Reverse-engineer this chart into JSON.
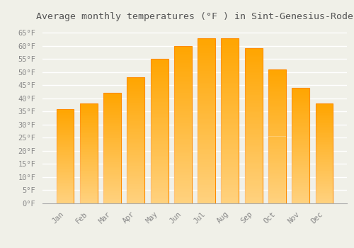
{
  "title": "Average monthly temperatures (°F ) in Sint-Genesius-Rode",
  "months": [
    "Jan",
    "Feb",
    "Mar",
    "Apr",
    "May",
    "Jun",
    "Jul",
    "Aug",
    "Sep",
    "Oct",
    "Nov",
    "Dec"
  ],
  "values": [
    36,
    38,
    42,
    48,
    55,
    60,
    63,
    63,
    59,
    51,
    44,
    38
  ],
  "bar_color_top": "#FFA500",
  "bar_color_bottom": "#FFD060",
  "bar_edge_color": "#FF8C00",
  "background_color": "#f0f0e8",
  "grid_color": "#ffffff",
  "ylim": [
    0,
    68
  ],
  "yticks": [
    0,
    5,
    10,
    15,
    20,
    25,
    30,
    35,
    40,
    45,
    50,
    55,
    60,
    65
  ],
  "title_fontsize": 9.5,
  "tick_fontsize": 7.5,
  "font_family": "monospace"
}
